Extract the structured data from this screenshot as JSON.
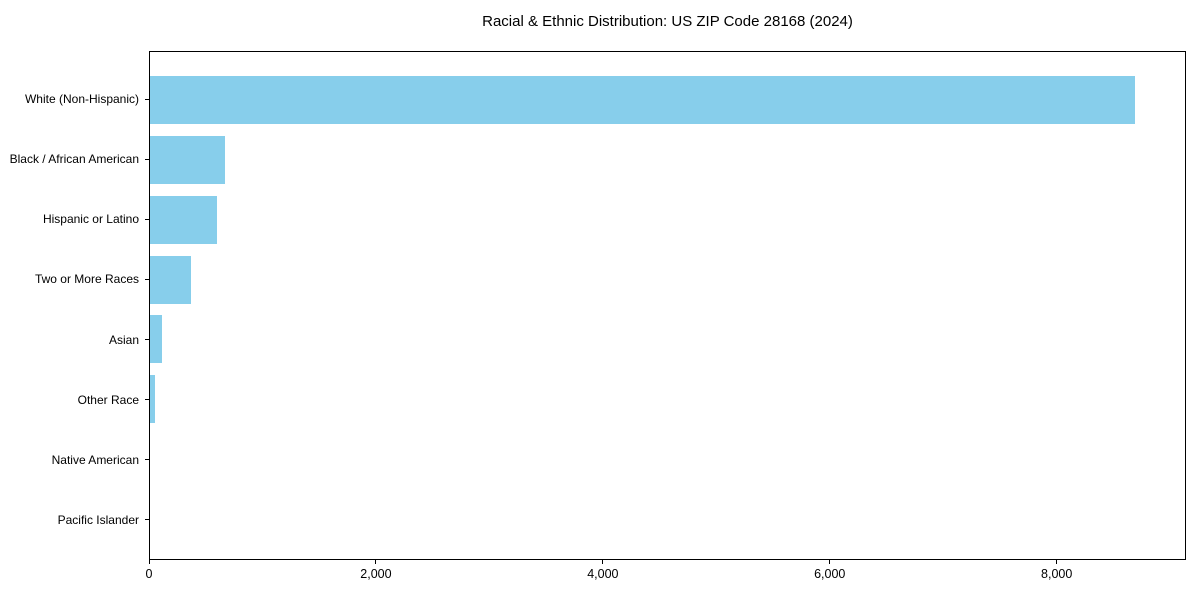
{
  "figure": {
    "background": "#ffffff",
    "text_color": "#000000"
  },
  "chart_data": {
    "type": "bar",
    "orientation": "horizontal",
    "title": "Racial & Ethnic Distribution: US ZIP Code 28168 (2024)",
    "categories": [
      "White (Non-Hispanic)",
      "Black / African American",
      "Hispanic or Latino",
      "Two or More Races",
      "Asian",
      "Other Race",
      "Native American",
      "Pacific Islander"
    ],
    "values": [
      8700,
      660,
      590,
      360,
      105,
      45,
      0,
      0
    ],
    "bar_color": "#87CEEB",
    "xlabel": "",
    "ylabel": "",
    "xlim": [
      0,
      9140
    ],
    "xticks": {
      "values": [
        0,
        2000,
        4000,
        6000,
        8000
      ],
      "labels": [
        "0",
        "2,000",
        "4,000",
        "6,000",
        "8,000"
      ]
    },
    "grid": false,
    "legend": "none",
    "sort": "descending"
  }
}
